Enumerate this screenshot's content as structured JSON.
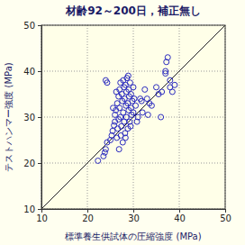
{
  "chart_data": {
    "type": "scatter",
    "title": "材齢92～200日，補正無し",
    "x_label": "標準養生供試体の圧縮強度 (MPa)",
    "y_label": "テストハンマー強度 (MPa)",
    "x": [
      22.3,
      23.5,
      23.8,
      24.0,
      24.3,
      24.0,
      24.3,
      25.0,
      25.3,
      25.5,
      25.8,
      26.0,
      26.0,
      26.2,
      26.4,
      26.5,
      26.6,
      26.8,
      26.8,
      27.0,
      27.0,
      27.2,
      27.2,
      27.4,
      27.5,
      27.6,
      27.8,
      27.8,
      28.0,
      28.0,
      28.1,
      28.2,
      28.3,
      28.4,
      28.5,
      28.5,
      28.6,
      28.8,
      28.8,
      29.0,
      29.0,
      29.1,
      29.2,
      29.3,
      29.5,
      29.5,
      29.6,
      29.8,
      30.0,
      30.0,
      30.2,
      30.5,
      27.3,
      27.7,
      28.3,
      28.9,
      29.4,
      26.9,
      26.3,
      25.6,
      31.0,
      31.5,
      32.0,
      32.5,
      33.0,
      33.5,
      34.0,
      35.0,
      35.5,
      36.0,
      36.2,
      37.0,
      37.0,
      37.2,
      37.5,
      38.0,
      38.0,
      38.5,
      39.0,
      33.2,
      30.8,
      31.8
    ],
    "y": [
      20.5,
      21.5,
      22.3,
      38.0,
      37.5,
      23.0,
      24.5,
      25.0,
      26.0,
      27.0,
      28.2,
      29.0,
      30.5,
      31.5,
      25.5,
      33.0,
      27.5,
      34.5,
      29.5,
      36.0,
      32.0,
      37.5,
      30.0,
      28.0,
      35.0,
      33.5,
      38.0,
      31.0,
      36.5,
      29.0,
      34.0,
      26.5,
      37.0,
      32.5,
      35.5,
      30.0,
      38.5,
      33.0,
      27.5,
      36.0,
      31.5,
      34.5,
      29.0,
      37.5,
      32.0,
      35.0,
      30.5,
      33.5,
      36.5,
      31.0,
      34.0,
      32.5,
      26.0,
      24.5,
      25.5,
      39.0,
      28.0,
      23.0,
      35.5,
      32.0,
      30.0,
      34.0,
      31.0,
      36.0,
      34.0,
      33.0,
      32.5,
      36.5,
      35.0,
      30.0,
      35.5,
      39.5,
      40.0,
      42.0,
      43.0,
      38.0,
      36.5,
      35.5,
      37.0,
      30.5,
      29.0,
      33.5
    ],
    "xlim": [
      10,
      50
    ],
    "ylim": [
      10,
      50
    ],
    "xticks": [
      10,
      20,
      30,
      40,
      50
    ],
    "yticks": [
      10,
      20,
      30,
      40,
      50
    ],
    "grid": true,
    "color": "#2b2bbf",
    "marker": "circle"
  }
}
